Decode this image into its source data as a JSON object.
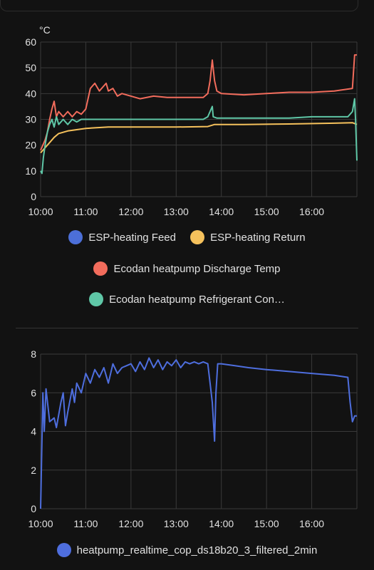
{
  "colors": {
    "feed": "#4c6fd8",
    "return": "#f5c15c",
    "discharge": "#f26c5c",
    "refrigerant": "#5fc7a7",
    "cop": "#4e6ede",
    "grid": "#3a3a3a",
    "text": "#e1e1e1"
  },
  "chart_data": [
    {
      "type": "line",
      "unit": "°C",
      "ylim": [
        0,
        60
      ],
      "yticks": [
        0,
        10,
        20,
        30,
        40,
        50,
        60
      ],
      "xlim": [
        10.0,
        17.0
      ],
      "xticks": [
        {
          "v": 10,
          "label": "10:00"
        },
        {
          "v": 11,
          "label": "11:00"
        },
        {
          "v": 12,
          "label": "12:00"
        },
        {
          "v": 13,
          "label": "13:00"
        },
        {
          "v": 14,
          "label": "14:00"
        },
        {
          "v": 15,
          "label": "15:00"
        },
        {
          "v": 16,
          "label": "16:00"
        }
      ],
      "grid": true,
      "legend_position": "bottom",
      "series": [
        {
          "name": "ESP-heating Feed",
          "color_key": "feed",
          "points": []
        },
        {
          "name": "ESP-heating Return",
          "color_key": "return",
          "points": [
            [
              10.0,
              17
            ],
            [
              10.1,
              19
            ],
            [
              10.2,
              21
            ],
            [
              10.3,
              23
            ],
            [
              10.4,
              24.5
            ],
            [
              10.6,
              25.5
            ],
            [
              10.8,
              26
            ],
            [
              11.0,
              26.5
            ],
            [
              11.5,
              27
            ],
            [
              12.0,
              27
            ],
            [
              13.0,
              27
            ],
            [
              13.7,
              27.2
            ],
            [
              13.85,
              28
            ],
            [
              14.5,
              28
            ],
            [
              15.5,
              28.2
            ],
            [
              16.5,
              28.5
            ],
            [
              16.9,
              28.7
            ],
            [
              17.0,
              28
            ]
          ]
        },
        {
          "name": "Ecodan heatpump Discharge Temp",
          "color_key": "discharge",
          "points": [
            [
              10.0,
              18
            ],
            [
              10.05,
              20
            ],
            [
              10.1,
              22
            ],
            [
              10.15,
              25
            ],
            [
              10.2,
              30
            ],
            [
              10.25,
              34
            ],
            [
              10.3,
              37
            ],
            [
              10.35,
              31
            ],
            [
              10.4,
              33
            ],
            [
              10.5,
              31
            ],
            [
              10.6,
              33
            ],
            [
              10.7,
              31
            ],
            [
              10.8,
              33
            ],
            [
              10.9,
              32
            ],
            [
              11.0,
              34
            ],
            [
              11.05,
              38
            ],
            [
              11.1,
              42
            ],
            [
              11.2,
              44
            ],
            [
              11.3,
              41
            ],
            [
              11.4,
              43
            ],
            [
              11.45,
              44
            ],
            [
              11.5,
              41
            ],
            [
              11.6,
              42
            ],
            [
              11.7,
              39
            ],
            [
              11.8,
              40
            ],
            [
              12.0,
              39
            ],
            [
              12.2,
              38
            ],
            [
              12.5,
              39
            ],
            [
              12.8,
              38.5
            ],
            [
              13.2,
              38.5
            ],
            [
              13.6,
              38.5
            ],
            [
              13.7,
              40
            ],
            [
              13.75,
              45
            ],
            [
              13.8,
              53
            ],
            [
              13.85,
              45
            ],
            [
              13.9,
              41
            ],
            [
              14.0,
              40
            ],
            [
              14.5,
              39.5
            ],
            [
              15.0,
              40
            ],
            [
              15.5,
              40.5
            ],
            [
              16.0,
              40.5
            ],
            [
              16.5,
              41
            ],
            [
              16.9,
              42
            ],
            [
              16.95,
              55
            ],
            [
              17.0,
              55
            ]
          ]
        },
        {
          "name": "Ecodan heatpump Refrigerant Con…",
          "color_key": "refrigerant",
          "points": [
            [
              10.0,
              10
            ],
            [
              10.03,
              9
            ],
            [
              10.06,
              15
            ],
            [
              10.1,
              20
            ],
            [
              10.15,
              25
            ],
            [
              10.2,
              28
            ],
            [
              10.25,
              30
            ],
            [
              10.3,
              27
            ],
            [
              10.35,
              31
            ],
            [
              10.4,
              28
            ],
            [
              10.5,
              30
            ],
            [
              10.6,
              28
            ],
            [
              10.7,
              30
            ],
            [
              10.8,
              29
            ],
            [
              10.9,
              30
            ],
            [
              11.0,
              30
            ],
            [
              11.5,
              30
            ],
            [
              12.0,
              30
            ],
            [
              12.5,
              30
            ],
            [
              13.0,
              30
            ],
            [
              13.6,
              30
            ],
            [
              13.7,
              31
            ],
            [
              13.8,
              35
            ],
            [
              13.82,
              31
            ],
            [
              13.9,
              30.5
            ],
            [
              14.5,
              30.5
            ],
            [
              15.0,
              30.5
            ],
            [
              15.5,
              30.5
            ],
            [
              16.0,
              31
            ],
            [
              16.8,
              31
            ],
            [
              16.9,
              33
            ],
            [
              16.95,
              38
            ],
            [
              16.97,
              30
            ],
            [
              17.0,
              14
            ]
          ]
        }
      ]
    },
    {
      "type": "line",
      "ylim": [
        0,
        8
      ],
      "yticks": [
        0,
        2,
        4,
        6,
        8
      ],
      "xlim": [
        10.0,
        17.0
      ],
      "xticks": [
        {
          "v": 10,
          "label": "10:00"
        },
        {
          "v": 11,
          "label": "11:00"
        },
        {
          "v": 12,
          "label": "12:00"
        },
        {
          "v": 13,
          "label": "13:00"
        },
        {
          "v": 14,
          "label": "14:00"
        },
        {
          "v": 15,
          "label": "15:00"
        },
        {
          "v": 16,
          "label": "16:00"
        }
      ],
      "grid": true,
      "legend_position": "bottom",
      "series": [
        {
          "name": "heatpump_realtime_cop_ds18b20_3_filtered_2min",
          "color_key": "cop",
          "points": [
            [
              10.0,
              0
            ],
            [
              10.05,
              6
            ],
            [
              10.08,
              4
            ],
            [
              10.12,
              6.2
            ],
            [
              10.2,
              4.5
            ],
            [
              10.3,
              4.7
            ],
            [
              10.35,
              4.2
            ],
            [
              10.45,
              5.5
            ],
            [
              10.5,
              6
            ],
            [
              10.55,
              4.3
            ],
            [
              10.6,
              5
            ],
            [
              10.7,
              6.2
            ],
            [
              10.75,
              5.5
            ],
            [
              10.8,
              6.5
            ],
            [
              10.9,
              6
            ],
            [
              11.0,
              7
            ],
            [
              11.1,
              6.5
            ],
            [
              11.2,
              7.2
            ],
            [
              11.3,
              6.8
            ],
            [
              11.4,
              7.3
            ],
            [
              11.5,
              6.5
            ],
            [
              11.6,
              7.5
            ],
            [
              11.7,
              7
            ],
            [
              11.8,
              7.3
            ],
            [
              11.9,
              7.4
            ],
            [
              12.0,
              7.5
            ],
            [
              12.1,
              7.1
            ],
            [
              12.2,
              7.6
            ],
            [
              12.3,
              7.2
            ],
            [
              12.4,
              7.8
            ],
            [
              12.5,
              7.3
            ],
            [
              12.6,
              7.7
            ],
            [
              12.7,
              7.2
            ],
            [
              12.8,
              7.6
            ],
            [
              12.9,
              7.4
            ],
            [
              13.0,
              7.7
            ],
            [
              13.1,
              7.3
            ],
            [
              13.2,
              7.6
            ],
            [
              13.3,
              7.5
            ],
            [
              13.4,
              7.6
            ],
            [
              13.5,
              7.5
            ],
            [
              13.6,
              7.6
            ],
            [
              13.7,
              7.5
            ],
            [
              13.75,
              6.5
            ],
            [
              13.8,
              5.5
            ],
            [
              13.85,
              3.5
            ],
            [
              13.88,
              6
            ],
            [
              13.92,
              7.5
            ],
            [
              14.0,
              7.5
            ],
            [
              14.3,
              7.4
            ],
            [
              14.6,
              7.3
            ],
            [
              15.0,
              7.2
            ],
            [
              15.5,
              7.1
            ],
            [
              16.0,
              7.0
            ],
            [
              16.5,
              6.9
            ],
            [
              16.8,
              6.8
            ],
            [
              16.85,
              5.5
            ],
            [
              16.9,
              4.5
            ],
            [
              16.95,
              4.8
            ],
            [
              17.0,
              4.8
            ]
          ]
        }
      ]
    }
  ]
}
